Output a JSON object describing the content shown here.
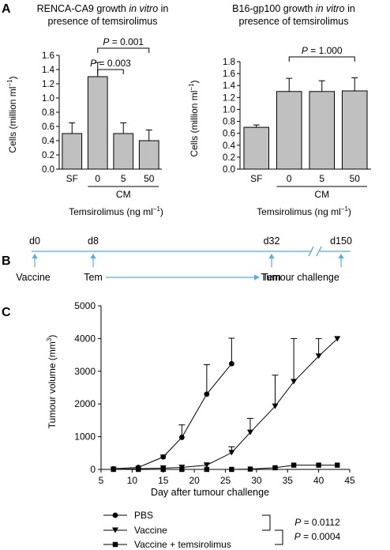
{
  "panel_labels": {
    "a": "A",
    "b": "B",
    "c": "C"
  },
  "chart_data": [
    {
      "type": "bar",
      "title": [
        "RENCA-CA9 growth ",
        "in vitro",
        " in",
        "presence of temsirolimus"
      ],
      "ylabel_main": "Cells (million ml",
      "ylabel_sup": "−1",
      "ylabel_close": ")",
      "categories": [
        "SF",
        "0",
        "5",
        "50"
      ],
      "values": [
        0.5,
        1.3,
        0.5,
        0.4
      ],
      "errors": [
        0.15,
        0.2,
        0.15,
        0.15
      ],
      "ylim": [
        0,
        1.6
      ],
      "yticks": [
        "0.0",
        "0.2",
        "0.4",
        "0.6",
        "0.8",
        "1.0",
        "1.2",
        "1.4",
        "1.6"
      ],
      "group_label": "CM",
      "xlabel_main": "Temsirolimus (ng ml",
      "xlabel_sup": "−1",
      "xlabel_close": ")",
      "pvalues": [
        {
          "label": "P",
          "value": " = 0.003",
          "from": 1,
          "to": 2
        },
        {
          "label": "P",
          "value": " = 0.001",
          "from": 1,
          "to": 3
        }
      ],
      "bar_color": "#c0c0c0"
    },
    {
      "type": "bar",
      "title": [
        "B16-gp100 growth ",
        "in vitro",
        " in",
        "presence of temsirolimus"
      ],
      "ylabel_main": "Cells (million ml",
      "ylabel_sup": "−1",
      "ylabel_close": ")",
      "categories": [
        "SF",
        "0",
        "5",
        "50"
      ],
      "values": [
        0.7,
        1.3,
        1.3,
        1.31
      ],
      "errors": [
        0.04,
        0.22,
        0.18,
        0.22
      ],
      "ylim": [
        0,
        1.8
      ],
      "yticks": [
        "0.0",
        "0.2",
        "0.4",
        "0.6",
        "0.8",
        "1.0",
        "1.2",
        "1.4",
        "1.6",
        "1.8"
      ],
      "group_label": "CM",
      "xlabel_main": "Temsirolimus (ng ml",
      "xlabel_sup": "−1",
      "xlabel_close": ")",
      "pvalues": [
        {
          "label": "P",
          "value": " = 1.000",
          "from": 1,
          "to": 3
        }
      ],
      "bar_color": "#c0c0c0"
    },
    {
      "type": "line",
      "xlabel": "Day after tumour challenge",
      "ylabel_main": "Tumour volume (mm",
      "ylabel_sup": "3",
      "ylabel_close": ")",
      "xlim": [
        5,
        45
      ],
      "ylim": [
        0,
        5000
      ],
      "xticks": [
        5,
        10,
        15,
        20,
        25,
        30,
        35,
        40,
        45
      ],
      "yticks": [
        0,
        1000,
        2000,
        3000,
        4000,
        5000
      ],
      "series": [
        {
          "name": "PBS",
          "marker": "circle",
          "x": [
            7,
            11,
            15,
            18,
            22,
            26
          ],
          "y": [
            20,
            60,
            380,
            980,
            2300,
            3230
          ],
          "err": [
            0,
            0,
            60,
            380,
            900,
            780
          ]
        },
        {
          "name": "Vaccine",
          "marker": "triangle-down",
          "x": [
            7,
            11,
            15,
            18,
            22,
            26,
            29,
            33,
            36,
            40,
            43
          ],
          "y": [
            0,
            20,
            40,
            60,
            130,
            510,
            1130,
            1930,
            2680,
            3460,
            3990
          ],
          "err": [
            0,
            0,
            0,
            0,
            0,
            180,
            430,
            950,
            1320,
            540,
            0
          ]
        },
        {
          "name": "Vaccine + temsirolimus",
          "marker": "square",
          "x": [
            7,
            11,
            15,
            18,
            22,
            26,
            29,
            33,
            36,
            40,
            43
          ],
          "y": [
            0,
            0,
            0,
            0,
            0,
            0,
            10,
            50,
            130,
            130,
            130
          ],
          "err": [
            0,
            0,
            0,
            0,
            0,
            0,
            0,
            0,
            0,
            0,
            0
          ]
        }
      ],
      "pvalues": [
        {
          "label": "P",
          "value": " = 0.0112"
        },
        {
          "label": "P",
          "value": " = 0.0004"
        }
      ]
    }
  ],
  "timeline": {
    "events": [
      {
        "day": "d0",
        "label": "Vaccine"
      },
      {
        "day": "d8",
        "label": "Tem"
      },
      {
        "day": "d32",
        "label": "Tem"
      },
      {
        "day": "d150",
        "label": "Tumour challenge"
      }
    ],
    "line_color": "#5aa9dd"
  }
}
